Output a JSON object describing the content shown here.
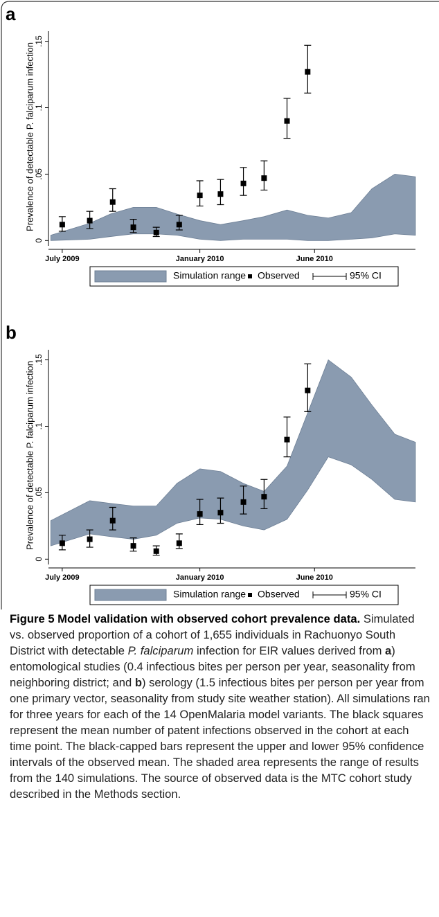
{
  "chart_data": [
    {
      "type": "combo",
      "label": "a",
      "y_label": "Prevalence of detectable P. falciparum infection",
      "xlim": [
        -0.6,
        15.4
      ],
      "xticks": [
        {
          "value": 0,
          "label": "July 2009"
        },
        {
          "value": 6,
          "label": "January 2010"
        },
        {
          "value": 11,
          "label": "June 2010"
        }
      ],
      "ylim": [
        -0.004,
        0.155
      ],
      "yticks": [
        0,
        {
          "value": 0.05,
          "label": ".05"
        },
        {
          "value": 0.1,
          "label": ".1"
        },
        {
          "value": 0.15,
          "label": ".15"
        }
      ],
      "series": [
        {
          "name": "Simulation range",
          "type": "area",
          "color": "#8a9bb0",
          "x": [
            -0.5,
            1.2,
            2.1,
            3.1,
            4.1,
            5,
            6,
            6.9,
            7.9,
            8.8,
            9.8,
            10.7,
            11.6,
            12.6,
            13.5,
            14.5,
            15.4
          ],
          "upper": [
            0.004,
            0.013,
            0.02,
            0.025,
            0.025,
            0.02,
            0.015,
            0.012,
            0.015,
            0.018,
            0.023,
            0.019,
            0.017,
            0.021,
            0.039,
            0.05,
            0.048
          ],
          "lower": [
            0,
            0.001,
            0.003,
            0.005,
            0.005,
            0.004,
            0.001,
            0,
            0.001,
            0.001,
            0.001,
            0,
            0,
            0.001,
            0.002,
            0.005,
            0.004
          ]
        },
        {
          "name": "Observed",
          "type": "scatter",
          "color": "#000000",
          "error_name": "95% CI",
          "x": [
            0,
            1.2,
            2.2,
            3.1,
            4.1,
            5.1,
            6,
            6.9,
            7.9,
            8.8,
            9.8,
            10.7
          ],
          "values": [
            0.012,
            0.015,
            0.029,
            0.01,
            0.006,
            0.012,
            0.034,
            0.035,
            0.043,
            0.047,
            0.09,
            0.127
          ],
          "ci_lower": [
            0.007,
            0.009,
            0.022,
            0.006,
            0.003,
            0.008,
            0.026,
            0.027,
            0.034,
            0.038,
            0.077,
            0.111
          ],
          "ci_upper": [
            0.018,
            0.022,
            0.039,
            0.016,
            0.01,
            0.019,
            0.045,
            0.046,
            0.055,
            0.06,
            0.107,
            0.147
          ]
        }
      ]
    },
    {
      "type": "combo",
      "label": "b",
      "y_label": "Prevalence of detectable P. falciparum infection",
      "xlim": [
        -0.6,
        15.4
      ],
      "xticks": [
        {
          "value": 0,
          "label": "July 2009"
        },
        {
          "value": 6,
          "label": "January 2010"
        },
        {
          "value": 11,
          "label": "June 2010"
        }
      ],
      "ylim": [
        -0.004,
        0.155
      ],
      "yticks": [
        0,
        {
          "value": 0.05,
          "label": ".05"
        },
        {
          "value": 0.1,
          "label": ".1"
        },
        {
          "value": 0.15,
          "label": ".15"
        }
      ],
      "series": [
        {
          "name": "Simulation range",
          "type": "area",
          "color": "#8a9bb0",
          "x": [
            -0.5,
            1.2,
            2.1,
            3.1,
            4.1,
            5,
            6,
            6.9,
            7.9,
            8.8,
            9.8,
            10.7,
            11.6,
            12.6,
            13.5,
            14.5,
            15.4
          ],
          "upper": [
            0.029,
            0.044,
            0.042,
            0.04,
            0.04,
            0.057,
            0.068,
            0.066,
            0.057,
            0.051,
            0.07,
            0.11,
            0.15,
            0.137,
            0.116,
            0.094,
            0.088
          ],
          "lower": [
            0.01,
            0.019,
            0.017,
            0.015,
            0.018,
            0.027,
            0.031,
            0.03,
            0.025,
            0.022,
            0.03,
            0.052,
            0.077,
            0.071,
            0.06,
            0.045,
            0.043
          ]
        },
        {
          "name": "Observed",
          "type": "scatter",
          "color": "#000000",
          "error_name": "95% CI",
          "x": [
            0,
            1.2,
            2.2,
            3.1,
            4.1,
            5.1,
            6,
            6.9,
            7.9,
            8.8,
            9.8,
            10.7
          ],
          "values": [
            0.012,
            0.015,
            0.029,
            0.01,
            0.006,
            0.012,
            0.034,
            0.035,
            0.043,
            0.047,
            0.09,
            0.127
          ],
          "ci_lower": [
            0.007,
            0.009,
            0.022,
            0.006,
            0.003,
            0.008,
            0.026,
            0.027,
            0.034,
            0.038,
            0.077,
            0.111
          ],
          "ci_upper": [
            0.018,
            0.022,
            0.039,
            0.016,
            0.01,
            0.019,
            0.045,
            0.046,
            0.055,
            0.06,
            0.107,
            0.147
          ]
        }
      ]
    }
  ],
  "caption": {
    "title": "Figure 5 Model validation with observed cohort prevalence data.",
    "parts": [
      " Simulated vs. observed proportion of a cohort of 1,655 individuals in Rachuonyo South District with detectable ",
      "P. falciparum",
      " infection for EIR values derived from ",
      "a",
      ") entomological studies (0.4 infectious bites per person per year, seasonality from neighboring district; and ",
      "b",
      ") serology (1.5 infectious bites per person per year from one primary vector, seasonality from study site weather station). All simulations ran for three years for each of the 14 OpenMalaria model variants. The black squares represent the mean number of patent infections observed in the cohort at each time point. The black-capped bars represent the upper and lower 95% confidence intervals of the observed mean. The shaded area represents the range of results from the 140 simulations. The source of observed data is the MTC cohort study described in the Methods section."
    ]
  }
}
